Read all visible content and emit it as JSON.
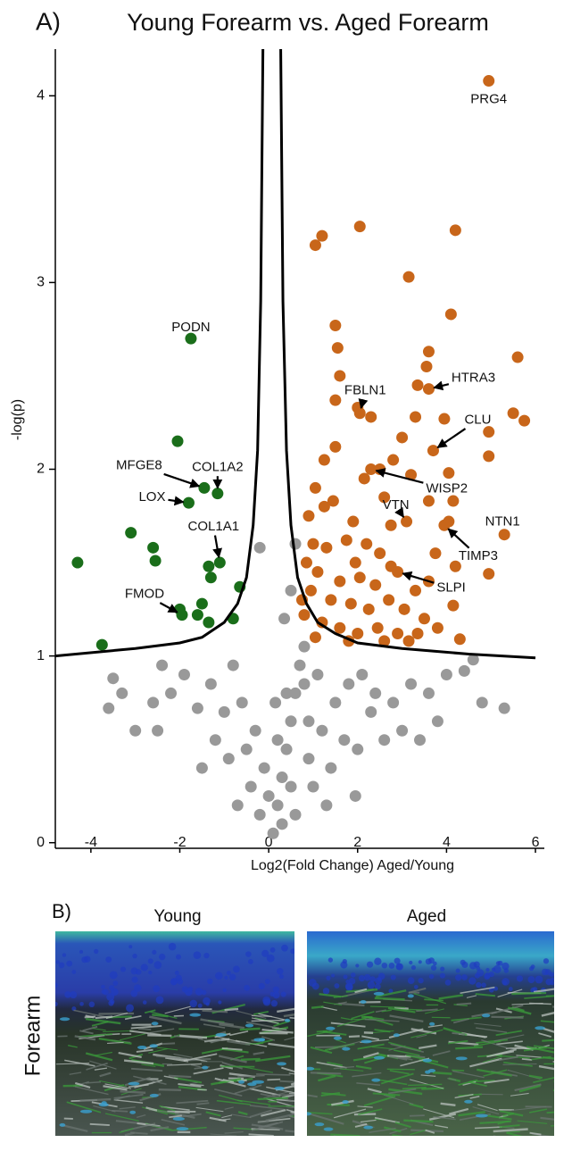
{
  "panel_a": "A)",
  "chart_data": {
    "type": "scatter",
    "title": "Young Forearm vs. Aged Forearm",
    "x_label": "Log2(Fold Change) Aged/Young",
    "y_label": "-log(p)",
    "xlim": [
      -4.8,
      6.2
    ],
    "ylim": [
      -0.03,
      4.25
    ],
    "xticks": [
      -4,
      -2,
      0,
      2,
      4,
      6
    ],
    "yticks": [
      0,
      1,
      2,
      3,
      4
    ],
    "series": [
      {
        "color": "#999999",
        "x": [
          -3.5,
          -3.3,
          -3.6,
          -3.0,
          -2.6,
          -2.5,
          -2.2,
          -2.4,
          -1.9,
          -1.6,
          -1.3,
          -1.0,
          -0.8,
          -0.6,
          -1.2,
          -0.9,
          -0.5,
          -0.4,
          -0.2,
          -1.5,
          -0.7,
          -0.3,
          0.1,
          0.2,
          0.3,
          0.4,
          0.5,
          0.6,
          0.7,
          0.8,
          0.5,
          0.9,
          1.2,
          1.5,
          1.8,
          2.1,
          2.4,
          2.8,
          3.2,
          3.6,
          4.0,
          4.4,
          4.8,
          5.3,
          0.3,
          0.6,
          1.0,
          1.4,
          1.7,
          2.0,
          2.6,
          3.0,
          3.4,
          1.3,
          0.9,
          1.1,
          0.4,
          0.2,
          -0.1,
          0.0,
          0.15,
          0.35,
          0.6,
          0.5,
          -0.2,
          4.6,
          1.95,
          0.8,
          2.3,
          3.8
        ],
        "values": [
          0.88,
          0.8,
          0.72,
          0.6,
          0.75,
          0.6,
          0.8,
          0.95,
          0.9,
          0.72,
          0.85,
          0.7,
          0.95,
          0.75,
          0.55,
          0.45,
          0.5,
          0.3,
          0.15,
          0.4,
          0.2,
          0.6,
          0.05,
          0.2,
          0.35,
          0.5,
          0.65,
          0.8,
          0.95,
          1.05,
          0.3,
          0.45,
          0.6,
          0.75,
          0.85,
          0.9,
          0.8,
          0.75,
          0.85,
          0.8,
          0.9,
          0.92,
          0.75,
          0.72,
          0.1,
          0.15,
          0.3,
          0.4,
          0.55,
          0.5,
          0.55,
          0.6,
          0.55,
          0.2,
          0.65,
          0.9,
          0.8,
          0.55,
          0.4,
          0.25,
          0.75,
          1.2,
          1.6,
          1.35,
          1.58,
          0.98,
          0.25,
          0.85,
          0.7,
          0.65
        ]
      },
      {
        "color": "#c8661a",
        "x": [
          1.2,
          1.05,
          2.05,
          4.2,
          3.15,
          4.1,
          1.5,
          1.55,
          3.6,
          5.6,
          1.6,
          3.55,
          3.35,
          1.5,
          2.0,
          2.3,
          3.3,
          3.95,
          5.5,
          5.75,
          3.0,
          4.95,
          2.8,
          1.5,
          1.25,
          2.5,
          2.15,
          4.95,
          3.2,
          4.05,
          1.05,
          1.45,
          2.6,
          2.75,
          4.15,
          3.6,
          1.25,
          4.05,
          4.95,
          4.15,
          4.3,
          3.6,
          1.0,
          0.85,
          1.3,
          1.75,
          2.2,
          2.5,
          1.1,
          1.6,
          2.05,
          2.4,
          3.3,
          0.95,
          1.4,
          1.85,
          2.25,
          2.7,
          3.05,
          3.5,
          0.8,
          1.2,
          1.6,
          2.0,
          2.45,
          2.9,
          3.35,
          3.8,
          1.05,
          1.8,
          2.6,
          3.15,
          0.75,
          1.95,
          2.75,
          3.75,
          4.2,
          0.9,
          1.9
        ],
        "values": [
          3.25,
          3.2,
          3.3,
          3.28,
          3.03,
          2.83,
          2.77,
          2.65,
          2.63,
          2.6,
          2.5,
          2.55,
          2.45,
          2.37,
          2.33,
          2.28,
          2.28,
          2.27,
          2.3,
          2.26,
          2.17,
          2.2,
          2.05,
          2.12,
          2.05,
          2.0,
          1.95,
          2.07,
          1.97,
          1.98,
          1.9,
          1.83,
          1.85,
          1.7,
          1.83,
          1.83,
          1.8,
          1.72,
          1.44,
          1.27,
          1.09,
          1.4,
          1.6,
          1.5,
          1.58,
          1.62,
          1.6,
          1.55,
          1.45,
          1.4,
          1.42,
          1.38,
          1.35,
          1.35,
          1.3,
          1.28,
          1.25,
          1.3,
          1.25,
          1.2,
          1.22,
          1.18,
          1.15,
          1.12,
          1.15,
          1.12,
          1.12,
          1.15,
          1.1,
          1.08,
          1.08,
          1.08,
          1.3,
          1.5,
          1.48,
          1.55,
          1.48,
          1.75,
          1.72
        ]
      },
      {
        "color": "#c8661a",
        "x": [
          4.95,
          3.6,
          2.05,
          3.7,
          2.3,
          3.1,
          3.95,
          5.3,
          2.9
        ],
        "values": [
          4.08,
          2.43,
          2.3,
          2.1,
          2.0,
          1.72,
          1.7,
          1.65,
          1.45
        ],
        "labels": [
          "PRG4",
          "HTRA3",
          "FBLN1",
          "CLU",
          "WISP2",
          "VTN",
          "TIMP3",
          "NTN1",
          "SLPI"
        ]
      },
      {
        "color": "#1a6e1a",
        "x": [
          -2.05,
          -1.35,
          -3.1,
          -2.6,
          -2.55,
          -4.3,
          -1.3,
          -0.65,
          -1.5,
          -2.0,
          -1.6,
          -1.35,
          -0.8,
          -3.75
        ],
        "values": [
          2.15,
          1.48,
          1.66,
          1.58,
          1.51,
          1.5,
          1.42,
          1.37,
          1.28,
          1.25,
          1.22,
          1.18,
          1.2,
          1.06
        ]
      },
      {
        "color": "#1a6e1a",
        "x": [
          -1.75,
          -1.45,
          -1.15,
          -1.8,
          -1.1,
          -1.95
        ],
        "values": [
          2.7,
          1.9,
          1.87,
          1.82,
          1.5,
          1.22
        ],
        "labels": [
          "PODN",
          "MFGE8",
          "COL1A2",
          "LOX",
          "COL1A1",
          "FMOD"
        ]
      },
      {
        "color": "#000000",
        "line": true,
        "x": [
          -4.8,
          -3,
          -2,
          -1.5,
          -1,
          -0.7,
          -0.5,
          -0.35,
          -0.25,
          -0.18,
          -0.13,
          null,
          0.27,
          0.32,
          0.4,
          0.5,
          0.65,
          0.85,
          1.1,
          1.5,
          2,
          3,
          4.5,
          6.0
        ],
        "values": [
          1.0,
          1.04,
          1.07,
          1.1,
          1.18,
          1.28,
          1.42,
          1.7,
          2.1,
          2.9,
          4.25,
          null,
          4.25,
          2.9,
          2.1,
          1.7,
          1.42,
          1.28,
          1.18,
          1.12,
          1.07,
          1.04,
          1.01,
          0.99
        ]
      }
    ]
  },
  "panel_b": {
    "label": "B)",
    "columns": [
      "Young",
      "Aged"
    ],
    "row": "Forearm"
  }
}
